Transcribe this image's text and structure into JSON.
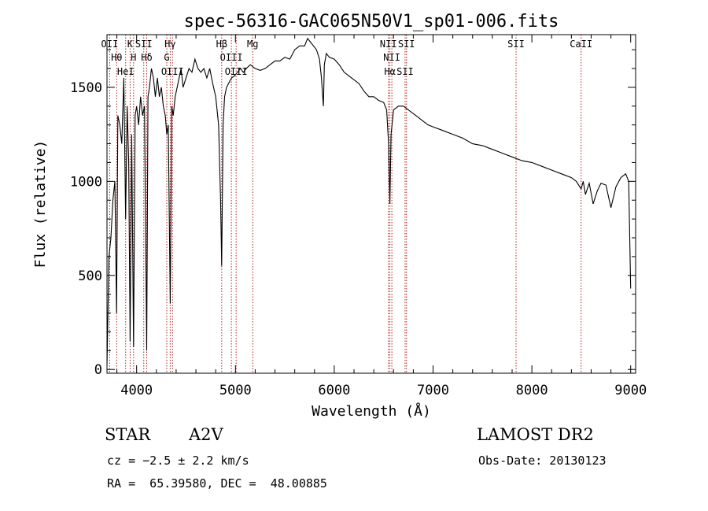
{
  "chart_data": {
    "type": "line",
    "title": "spec-56316-GAC065N50V1_sp01-006.fits",
    "xlabel": "Wavelength (Å)",
    "ylabel": "Flux (relative)",
    "xlim": [
      3700,
      9050
    ],
    "ylim": [
      -20,
      1780
    ],
    "xticks": [
      4000,
      5000,
      6000,
      7000,
      8000,
      9000
    ],
    "yticks": [
      0,
      500,
      1000,
      1500
    ],
    "grid": false,
    "line_color": "#000000",
    "marker_color": "#b22222",
    "line_markers": [
      {
        "label": "OII",
        "wavelength": 3727
      },
      {
        "label": "Hθ",
        "wavelength": 3798
      },
      {
        "label": "HeI",
        "wavelength": 3889
      },
      {
        "label": "K",
        "wavelength": 3934
      },
      {
        "label": "H",
        "wavelength": 3969
      },
      {
        "label": "SII",
        "wavelength": 4072
      },
      {
        "label": "Hδ",
        "wavelength": 4102
      },
      {
        "label": "Hγ",
        "wavelength": 4340
      },
      {
        "label": "G",
        "wavelength": 4305
      },
      {
        "label": "OIII",
        "wavelength": 4363
      },
      {
        "label": "Hβ",
        "wavelength": 4861
      },
      {
        "label": "OIII",
        "wavelength": 4959
      },
      {
        "label": "OIII",
        "wavelength": 5007
      },
      {
        "label": "Mg",
        "wavelength": 5175
      },
      {
        "label": "NII",
        "wavelength": 6548
      },
      {
        "label": "NII",
        "wavelength": 6583
      },
      {
        "label": "Hα",
        "wavelength": 6563
      },
      {
        "label": "SII",
        "wavelength": 6717
      },
      {
        "label": "SII",
        "wavelength": 6731
      },
      {
        "label": "SII",
        "wavelength": 7840
      },
      {
        "label": "CaII",
        "wavelength": 8498
      }
    ],
    "series": [
      {
        "x": [
          3700,
          3720,
          3740,
          3760,
          3780,
          3797,
          3810,
          3830,
          3850,
          3870,
          3889,
          3905,
          3920,
          3934,
          3950,
          3969,
          3985,
          4000,
          4020,
          4040,
          4060,
          4080,
          4102,
          4115,
          4130,
          4150,
          4170,
          4190,
          4210,
          4230,
          4250,
          4270,
          4290,
          4305,
          4320,
          4340,
          4355,
          4370,
          4390,
          4410,
          4430,
          4450,
          4470,
          4500,
          4530,
          4560,
          4590,
          4620,
          4650,
          4680,
          4710,
          4740,
          4770,
          4800,
          4830,
          4850,
          4861,
          4875,
          4890,
          4910,
          4930,
          4960,
          4990,
          5020,
          5050,
          5080,
          5110,
          5150,
          5200,
          5250,
          5300,
          5350,
          5400,
          5450,
          5500,
          5550,
          5600,
          5650,
          5700,
          5730,
          5760,
          5790,
          5820,
          5850,
          5870,
          5890,
          5900,
          5920,
          5950,
          6000,
          6050,
          6100,
          6150,
          6200,
          6250,
          6300,
          6350,
          6400,
          6450,
          6500,
          6530,
          6550,
          6563,
          6575,
          6600,
          6650,
          6700,
          6750,
          6800,
          6850,
          6900,
          6950,
          7000,
          7100,
          7200,
          7300,
          7400,
          7500,
          7600,
          7700,
          7800,
          7900,
          8000,
          8100,
          8200,
          8300,
          8400,
          8450,
          8498,
          8520,
          8542,
          8580,
          8620,
          8662,
          8700,
          8750,
          8800,
          8850,
          8900,
          8950,
          8980,
          9000
        ],
        "y": [
          20,
          600,
          700,
          900,
          1000,
          300,
          1350,
          1300,
          1200,
          1550,
          800,
          1400,
          1100,
          150,
          1250,
          120,
          1350,
          1400,
          1300,
          1450,
          1350,
          1400,
          100,
          1450,
          1500,
          1600,
          1550,
          1450,
          1550,
          1450,
          1500,
          1400,
          1350,
          1250,
          1300,
          350,
          1400,
          1350,
          1450,
          1500,
          1550,
          1600,
          1500,
          1550,
          1600,
          1580,
          1650,
          1600,
          1580,
          1600,
          1550,
          1600,
          1520,
          1450,
          1300,
          900,
          550,
          1300,
          1450,
          1500,
          1520,
          1550,
          1560,
          1580,
          1600,
          1580,
          1600,
          1620,
          1600,
          1590,
          1600,
          1620,
          1640,
          1640,
          1660,
          1650,
          1700,
          1720,
          1720,
          1760,
          1740,
          1720,
          1700,
          1650,
          1550,
          1400,
          1620,
          1680,
          1660,
          1650,
          1620,
          1580,
          1560,
          1540,
          1520,
          1480,
          1450,
          1450,
          1430,
          1420,
          1380,
          1200,
          880,
          1250,
          1380,
          1400,
          1400,
          1380,
          1360,
          1340,
          1320,
          1300,
          1290,
          1270,
          1250,
          1230,
          1200,
          1190,
          1170,
          1150,
          1130,
          1110,
          1100,
          1080,
          1060,
          1040,
          1020,
          1000,
          960,
          1000,
          930,
          990,
          880,
          950,
          990,
          980,
          860,
          970,
          1020,
          1040,
          1000,
          430
        ]
      }
    ]
  },
  "info": {
    "class_label": "STAR",
    "subclass": "A2V",
    "survey": "LAMOST DR2",
    "cz": "cz = −2.5 ± 2.2 km/s",
    "obs_date": "Obs-Date: 20130123",
    "coords": "RA =  65.39580, DEC =  48.00885"
  }
}
